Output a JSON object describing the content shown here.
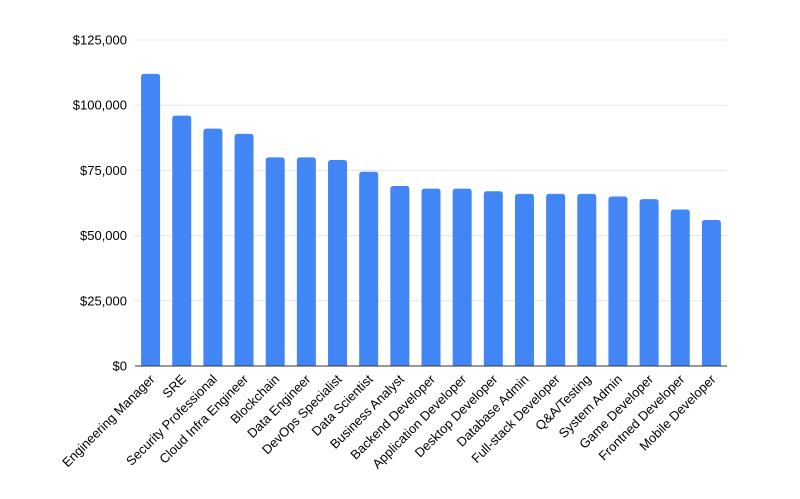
{
  "chart_data": {
    "type": "bar",
    "title": "",
    "xlabel": "",
    "ylabel": "",
    "ylim": [
      0,
      125000
    ],
    "grid": true,
    "legend": "none",
    "bar_color": "#4285f4",
    "gridline_color": "#e6e6e6",
    "baseline_color": "#333333",
    "axis_text_color": "#000000",
    "x_label_rotation": -45,
    "categories": [
      "Engineering Manager",
      "SRE",
      "Security Professional",
      "Cloud Infra Engineer",
      "Blockchain",
      "Data Engineer",
      "DevOps Specialist",
      "Data Scientist",
      "Business Analyst",
      "Backend Developer",
      "Application Developer",
      "Desktop Developer",
      "Database Admin",
      "Full-stack Developer",
      "Q&A/Testing",
      "System Admin",
      "Game Developer",
      "Frontned Developer",
      "Mobile Developer"
    ],
    "values": [
      112000,
      96000,
      91000,
      89000,
      80000,
      80000,
      79000,
      74500,
      69000,
      68000,
      68000,
      67000,
      66000,
      66000,
      66000,
      65000,
      64000,
      60000,
      56000
    ],
    "y_ticks": [
      {
        "value": 0,
        "label": "$0"
      },
      {
        "value": 25000,
        "label": "$25,000"
      },
      {
        "value": 50000,
        "label": "$50,000"
      },
      {
        "value": 75000,
        "label": "$75,000"
      },
      {
        "value": 100000,
        "label": "$100,000"
      },
      {
        "value": 125000,
        "label": "$125,000"
      }
    ]
  }
}
